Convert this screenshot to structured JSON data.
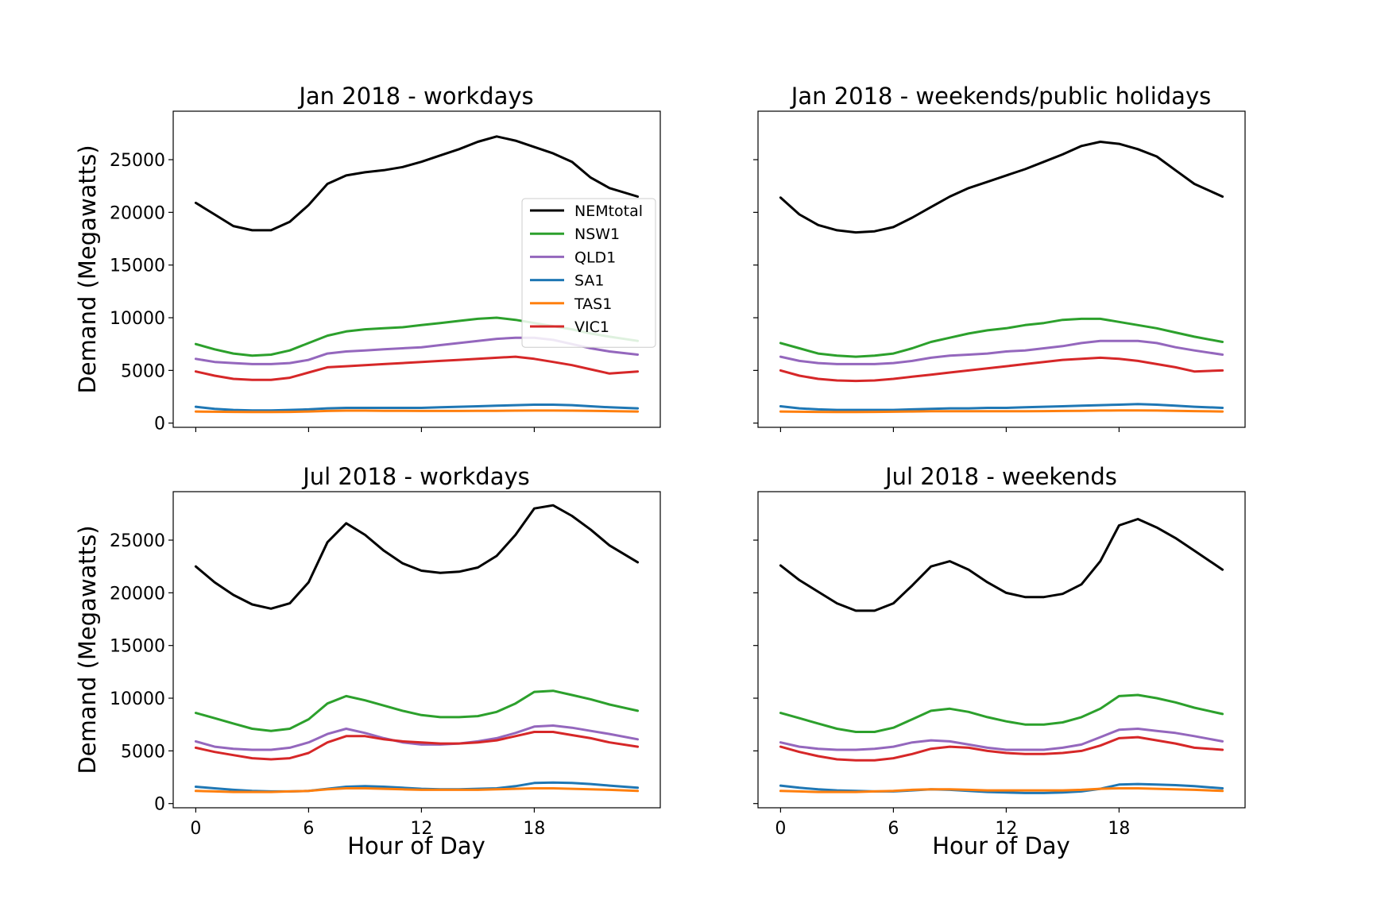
{
  "figure": {
    "ylabel": "Demand (Megawatts)",
    "xlabel": "Hour of Day",
    "x_ticks": [
      0,
      6,
      12,
      18
    ],
    "y_ticks": [
      0,
      5000,
      10000,
      15000,
      20000,
      25000
    ]
  },
  "chart_data": [
    {
      "type": "line",
      "title": "Jan 2018 - workdays",
      "xlabel": "",
      "ylabel": "Demand (Megawatts)",
      "xlim": [
        -1.2,
        24.7
      ],
      "ylim": [
        -400,
        29600
      ],
      "grid": false,
      "legend": "right",
      "x": [
        0,
        1,
        2,
        3,
        4,
        5,
        6,
        7,
        8,
        9,
        10,
        11,
        12,
        13,
        14,
        15,
        16,
        17,
        18,
        19,
        20,
        21,
        22,
        23.5
      ],
      "series": [
        {
          "name": "NEMtotal",
          "color": "#000000",
          "values": [
            20900,
            19800,
            18700,
            18300,
            18300,
            19100,
            20700,
            22700,
            23500,
            23800,
            24000,
            24300,
            24800,
            25400,
            26000,
            26700,
            27200,
            26800,
            26200,
            25600,
            24800,
            23300,
            22300,
            21500
          ]
        },
        {
          "name": "NSW1",
          "color": "#2ca02c",
          "values": [
            7500,
            7000,
            6600,
            6400,
            6500,
            6900,
            7600,
            8300,
            8700,
            8900,
            9000,
            9100,
            9300,
            9500,
            9700,
            9900,
            10000,
            9800,
            9500,
            9200,
            8900,
            8500,
            8200,
            7800
          ]
        },
        {
          "name": "QLD1",
          "color": "#9467bd",
          "values": [
            6100,
            5800,
            5700,
            5600,
            5600,
            5700,
            6000,
            6600,
            6800,
            6900,
            7000,
            7100,
            7200,
            7400,
            7600,
            7800,
            8000,
            8100,
            8100,
            7900,
            7500,
            7100,
            6800,
            6500
          ]
        },
        {
          "name": "SA1",
          "color": "#1f77b4",
          "values": [
            1550,
            1350,
            1250,
            1200,
            1200,
            1250,
            1300,
            1400,
            1450,
            1450,
            1450,
            1450,
            1450,
            1500,
            1550,
            1600,
            1650,
            1700,
            1750,
            1750,
            1700,
            1600,
            1500,
            1400
          ]
        },
        {
          "name": "TAS1",
          "color": "#ff7f0e",
          "values": [
            1100,
            1080,
            1060,
            1050,
            1050,
            1060,
            1100,
            1150,
            1180,
            1180,
            1170,
            1160,
            1150,
            1150,
            1150,
            1160,
            1170,
            1180,
            1190,
            1190,
            1180,
            1160,
            1140,
            1100
          ]
        },
        {
          "name": "VIC1",
          "color": "#d62728",
          "values": [
            4900,
            4500,
            4200,
            4100,
            4100,
            4300,
            4800,
            5300,
            5400,
            5500,
            5600,
            5700,
            5800,
            5900,
            6000,
            6100,
            6200,
            6300,
            6100,
            5800,
            5500,
            5100,
            4700,
            4900
          ]
        }
      ]
    },
    {
      "type": "line",
      "title": "Jan 2018 - weekends/public holidays",
      "xlabel": "",
      "ylabel": "",
      "xlim": [
        -1.2,
        24.7
      ],
      "ylim": [
        -400,
        29600
      ],
      "grid": false,
      "x": [
        0,
        1,
        2,
        3,
        4,
        5,
        6,
        7,
        8,
        9,
        10,
        11,
        12,
        13,
        14,
        15,
        16,
        17,
        18,
        19,
        20,
        21,
        22,
        23.5
      ],
      "series": [
        {
          "name": "NEMtotal",
          "color": "#000000",
          "values": [
            21400,
            19800,
            18800,
            18300,
            18100,
            18200,
            18600,
            19500,
            20500,
            21500,
            22300,
            22900,
            23500,
            24100,
            24800,
            25500,
            26300,
            26700,
            26500,
            26000,
            25300,
            24000,
            22700,
            21500
          ]
        },
        {
          "name": "NSW1",
          "color": "#2ca02c",
          "values": [
            7600,
            7100,
            6600,
            6400,
            6300,
            6400,
            6600,
            7100,
            7700,
            8100,
            8500,
            8800,
            9000,
            9300,
            9500,
            9800,
            9900,
            9900,
            9600,
            9300,
            9000,
            8600,
            8200,
            7700
          ]
        },
        {
          "name": "QLD1",
          "color": "#9467bd",
          "values": [
            6300,
            5900,
            5700,
            5600,
            5600,
            5600,
            5700,
            5900,
            6200,
            6400,
            6500,
            6600,
            6800,
            6900,
            7100,
            7300,
            7600,
            7800,
            7800,
            7800,
            7600,
            7200,
            6900,
            6500
          ]
        },
        {
          "name": "SA1",
          "color": "#1f77b4",
          "values": [
            1600,
            1400,
            1300,
            1250,
            1250,
            1250,
            1250,
            1300,
            1350,
            1400,
            1400,
            1450,
            1450,
            1500,
            1550,
            1600,
            1650,
            1700,
            1750,
            1800,
            1750,
            1650,
            1550,
            1450
          ]
        },
        {
          "name": "TAS1",
          "color": "#ff7f0e",
          "values": [
            1100,
            1080,
            1060,
            1050,
            1050,
            1060,
            1080,
            1100,
            1120,
            1130,
            1130,
            1130,
            1130,
            1130,
            1140,
            1150,
            1170,
            1190,
            1200,
            1200,
            1190,
            1170,
            1140,
            1100
          ]
        },
        {
          "name": "VIC1",
          "color": "#d62728",
          "values": [
            5000,
            4500,
            4200,
            4050,
            4000,
            4050,
            4200,
            4400,
            4600,
            4800,
            5000,
            5200,
            5400,
            5600,
            5800,
            6000,
            6100,
            6200,
            6100,
            5900,
            5600,
            5300,
            4900,
            5000
          ]
        }
      ]
    },
    {
      "type": "line",
      "title": "Jul 2018 - workdays",
      "xlabel": "Hour of Day",
      "ylabel": "Demand (Megawatts)",
      "xlim": [
        -1.2,
        24.7
      ],
      "ylim": [
        -400,
        29600
      ],
      "grid": false,
      "x": [
        0,
        1,
        2,
        3,
        4,
        5,
        6,
        7,
        8,
        9,
        10,
        11,
        12,
        13,
        14,
        15,
        16,
        17,
        18,
        19,
        20,
        21,
        22,
        23.5
      ],
      "series": [
        {
          "name": "NEMtotal",
          "color": "#000000",
          "values": [
            22500,
            21000,
            19800,
            18900,
            18500,
            19000,
            21000,
            24800,
            26600,
            25500,
            24000,
            22800,
            22100,
            21900,
            22000,
            22400,
            23500,
            25500,
            28000,
            28300,
            27300,
            26000,
            24500,
            22900
          ]
        },
        {
          "name": "NSW1",
          "color": "#2ca02c",
          "values": [
            8600,
            8100,
            7600,
            7100,
            6900,
            7100,
            8000,
            9500,
            10200,
            9800,
            9300,
            8800,
            8400,
            8200,
            8200,
            8300,
            8700,
            9500,
            10600,
            10700,
            10300,
            9900,
            9400,
            8800
          ]
        },
        {
          "name": "QLD1",
          "color": "#9467bd",
          "values": [
            5900,
            5400,
            5200,
            5100,
            5100,
            5300,
            5800,
            6600,
            7100,
            6700,
            6200,
            5800,
            5600,
            5600,
            5700,
            5900,
            6200,
            6700,
            7300,
            7400,
            7200,
            6900,
            6600,
            6100
          ]
        },
        {
          "name": "SA1",
          "color": "#1f77b4",
          "values": [
            1600,
            1450,
            1300,
            1200,
            1150,
            1150,
            1200,
            1400,
            1600,
            1650,
            1600,
            1500,
            1400,
            1350,
            1350,
            1400,
            1450,
            1650,
            1950,
            2000,
            1950,
            1850,
            1700,
            1500
          ]
        },
        {
          "name": "TAS1",
          "color": "#ff7f0e",
          "values": [
            1200,
            1150,
            1100,
            1100,
            1100,
            1150,
            1200,
            1350,
            1450,
            1450,
            1400,
            1350,
            1300,
            1300,
            1300,
            1300,
            1350,
            1400,
            1450,
            1450,
            1400,
            1350,
            1300,
            1200
          ]
        },
        {
          "name": "VIC1",
          "color": "#d62728",
          "values": [
            5300,
            4900,
            4600,
            4300,
            4200,
            4300,
            4800,
            5800,
            6400,
            6400,
            6100,
            5900,
            5800,
            5700,
            5700,
            5800,
            6000,
            6400,
            6800,
            6800,
            6500,
            6200,
            5800,
            5400
          ]
        }
      ]
    },
    {
      "type": "line",
      "title": "Jul 2018 - weekends",
      "xlabel": "Hour of Day",
      "ylabel": "",
      "xlim": [
        -1.2,
        24.7
      ],
      "ylim": [
        -400,
        29600
      ],
      "grid": false,
      "x": [
        0,
        1,
        2,
        3,
        4,
        5,
        6,
        7,
        8,
        9,
        10,
        11,
        12,
        13,
        14,
        15,
        16,
        17,
        18,
        19,
        20,
        21,
        22,
        23.5
      ],
      "series": [
        {
          "name": "NEMtotal",
          "color": "#000000",
          "values": [
            22600,
            21200,
            20100,
            19000,
            18300,
            18300,
            19000,
            20700,
            22500,
            23000,
            22200,
            21000,
            20000,
            19600,
            19600,
            19900,
            20800,
            23000,
            26400,
            27000,
            26200,
            25200,
            24000,
            22200
          ]
        },
        {
          "name": "NSW1",
          "color": "#2ca02c",
          "values": [
            8600,
            8100,
            7600,
            7100,
            6800,
            6800,
            7200,
            8000,
            8800,
            9000,
            8700,
            8200,
            7800,
            7500,
            7500,
            7700,
            8200,
            9000,
            10200,
            10300,
            10000,
            9600,
            9100,
            8500
          ]
        },
        {
          "name": "QLD1",
          "color": "#9467bd",
          "values": [
            5800,
            5400,
            5200,
            5100,
            5100,
            5200,
            5400,
            5800,
            6000,
            5900,
            5600,
            5300,
            5100,
            5100,
            5100,
            5300,
            5600,
            6300,
            7000,
            7100,
            6900,
            6700,
            6400,
            5900
          ]
        },
        {
          "name": "SA1",
          "color": "#1f77b4",
          "values": [
            1700,
            1500,
            1350,
            1250,
            1200,
            1150,
            1150,
            1250,
            1350,
            1300,
            1200,
            1100,
            1050,
            1000,
            1000,
            1050,
            1150,
            1400,
            1800,
            1850,
            1800,
            1750,
            1650,
            1450
          ]
        },
        {
          "name": "TAS1",
          "color": "#ff7f0e",
          "values": [
            1200,
            1150,
            1100,
            1100,
            1100,
            1150,
            1200,
            1300,
            1350,
            1350,
            1300,
            1250,
            1250,
            1250,
            1250,
            1250,
            1300,
            1400,
            1450,
            1450,
            1400,
            1350,
            1300,
            1200
          ]
        },
        {
          "name": "VIC1",
          "color": "#d62728",
          "values": [
            5400,
            4900,
            4500,
            4200,
            4100,
            4100,
            4300,
            4700,
            5200,
            5400,
            5300,
            5000,
            4800,
            4700,
            4700,
            4800,
            5000,
            5500,
            6200,
            6300,
            6000,
            5700,
            5300,
            5100
          ]
        }
      ]
    }
  ]
}
